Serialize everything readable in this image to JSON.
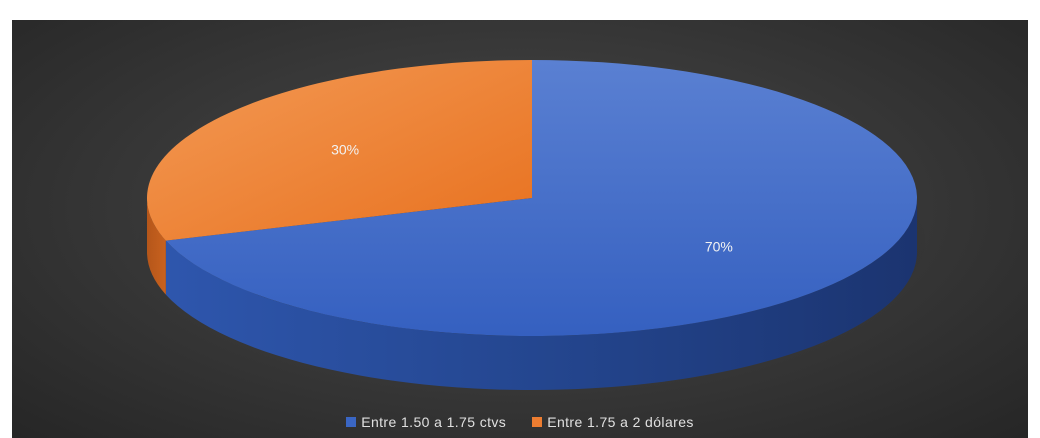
{
  "chart_data": {
    "type": "pie",
    "style": "3d",
    "categories": [
      "Entre 1.50 a 1.75 ctvs",
      "Entre 1.75 a 2 dólares"
    ],
    "values": [
      70,
      30
    ],
    "data_labels": [
      "70%",
      "30%"
    ],
    "colors": [
      "#3a66c4",
      "#ed7d31"
    ],
    "legend_position": "bottom",
    "title": ""
  }
}
